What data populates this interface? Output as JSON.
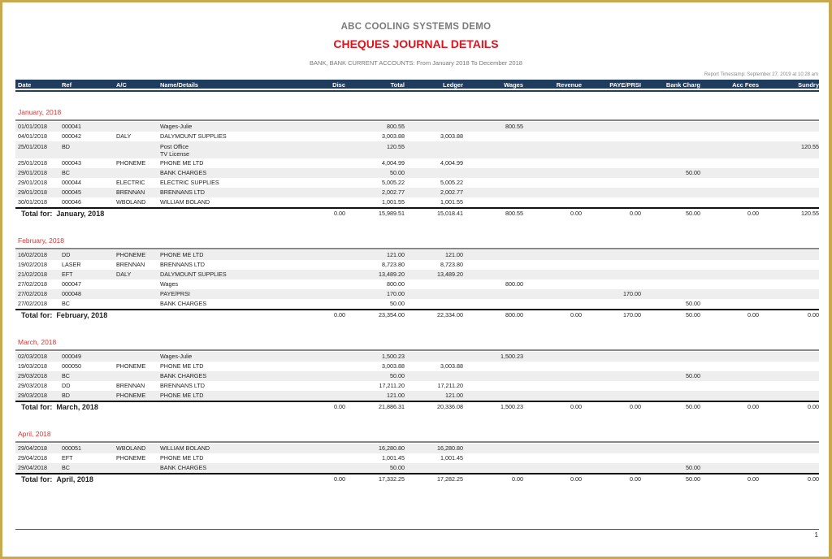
{
  "report": {
    "company": "ABC COOLING SYSTEMS DEMO",
    "title": "CHEQUES JOURNAL DETAILS",
    "subtitle": "BANK,  BANK CURRENT ACCOUNTS:  From January 2018 To December 2018",
    "timestamp": "Report Timestamp: September 27, 2019 at 10:28 am",
    "page_number": "1",
    "total_prefix": "Total for:"
  },
  "colors": {
    "header_bg": "#1f3b5e",
    "month_label": "#dd3333",
    "frame": "#c9a850"
  },
  "columns": [
    "Date",
    "Ref",
    "A/C",
    "Name/Details",
    "Disc",
    "Total",
    "Ledger",
    "Wages",
    "Revenue",
    "PAYE/PRSI",
    "Bank Charg",
    "Acc Fees",
    "Sundry"
  ],
  "groups": [
    {
      "month": "January, 2018",
      "rows": [
        [
          "01/01/2018",
          "000041",
          "",
          "Wages-Julie",
          "",
          "800.55",
          "",
          "800.55",
          "",
          "",
          "",
          "",
          ""
        ],
        [
          "04/01/2018",
          "000042",
          "DALY",
          "DALYMOUNT SUPPLIES",
          "",
          "3,003.88",
          "3,003.88",
          "",
          "",
          "",
          "",
          "",
          ""
        ],
        [
          "25/01/2018",
          "BD",
          "",
          "Post Office\nTV License",
          "",
          "120.55",
          "",
          "",
          "",
          "",
          "",
          "",
          "120.55"
        ],
        [
          "25/01/2018",
          "000043",
          "PHONEME",
          "PHONE ME LTD",
          "",
          "4,004.99",
          "4,004.99",
          "",
          "",
          "",
          "",
          "",
          ""
        ],
        [
          "29/01/2018",
          "BC",
          "",
          "BANK CHARGES",
          "",
          "50.00",
          "",
          "",
          "",
          "",
          "50.00",
          "",
          ""
        ],
        [
          "29/01/2018",
          "000044",
          "ELECTRIC",
          "ELECTRIC SUPPLIES",
          "",
          "5,005.22",
          "5,005.22",
          "",
          "",
          "",
          "",
          "",
          ""
        ],
        [
          "29/01/2018",
          "000045",
          "BRENNAN",
          "BRENNANS LTD",
          "",
          "2,002.77",
          "2,002.77",
          "",
          "",
          "",
          "",
          "",
          ""
        ],
        [
          "30/01/2018",
          "000046",
          "WBOLAND",
          "WILLIAM BOLAND",
          "",
          "1,001.55",
          "1,001.55",
          "",
          "",
          "",
          "",
          "",
          ""
        ]
      ],
      "totals": [
        "0.00",
        "15,989.51",
        "15,018.41",
        "800.55",
        "0.00",
        "0.00",
        "50.00",
        "0.00",
        "120.55"
      ]
    },
    {
      "month": "February, 2018",
      "rows": [
        [
          "16/02/2018",
          "DD",
          "PHONEME",
          "PHONE ME LTD",
          "",
          "121.00",
          "121.00",
          "",
          "",
          "",
          "",
          "",
          ""
        ],
        [
          "19/02/2018",
          "LASER",
          "BRENNAN",
          "BRENNANS LTD",
          "",
          "8,723.80",
          "8,723.80",
          "",
          "",
          "",
          "",
          "",
          ""
        ],
        [
          "21/02/2018",
          "EFT",
          "DALY",
          "DALYMOUNT SUPPLIES",
          "",
          "13,489.20",
          "13,489.20",
          "",
          "",
          "",
          "",
          "",
          ""
        ],
        [
          "27/02/2018",
          "000047",
          "",
          "Wages",
          "",
          "800.00",
          "",
          "800.00",
          "",
          "",
          "",
          "",
          ""
        ],
        [
          "27/02/2018",
          "000048",
          "",
          "PAYE/PRSI",
          "",
          "170.00",
          "",
          "",
          "",
          "170.00",
          "",
          "",
          ""
        ],
        [
          "27/02/2018",
          "BC",
          "",
          "BANK CHARGES",
          "",
          "50.00",
          "",
          "",
          "",
          "",
          "50.00",
          "",
          ""
        ]
      ],
      "totals": [
        "0.00",
        "23,354.00",
        "22,334.00",
        "800.00",
        "0.00",
        "170.00",
        "50.00",
        "0.00",
        "0.00"
      ]
    },
    {
      "month": "March, 2018",
      "rows": [
        [
          "02/03/2018",
          "000049",
          "",
          "Wages-Julie",
          "",
          "1,500.23",
          "",
          "1,500.23",
          "",
          "",
          "",
          "",
          ""
        ],
        [
          "19/03/2018",
          "000050",
          "PHONEME",
          "PHONE ME LTD",
          "",
          "3,003.88",
          "3,003.88",
          "",
          "",
          "",
          "",
          "",
          ""
        ],
        [
          "29/03/2018",
          "BC",
          "",
          "BANK CHARGES",
          "",
          "50.00",
          "",
          "",
          "",
          "",
          "50.00",
          "",
          ""
        ],
        [
          "29/03/2018",
          "DD",
          "BRENNAN",
          "BRENNANS LTD",
          "",
          "17,211.20",
          "17,211.20",
          "",
          "",
          "",
          "",
          "",
          ""
        ],
        [
          "29/03/2018",
          "BD",
          "PHONEME",
          "PHONE ME LTD",
          "",
          "121.00",
          "121.00",
          "",
          "",
          "",
          "",
          "",
          ""
        ]
      ],
      "totals": [
        "0.00",
        "21,886.31",
        "20,336.08",
        "1,500.23",
        "0.00",
        "0.00",
        "50.00",
        "0.00",
        "0.00"
      ]
    },
    {
      "month": "April, 2018",
      "rows": [
        [
          "29/04/2018",
          "000051",
          "WBOLAND",
          "WILLIAM BOLAND",
          "",
          "16,280.80",
          "16,280.80",
          "",
          "",
          "",
          "",
          "",
          ""
        ],
        [
          "29/04/2018",
          "EFT",
          "PHONEME",
          "PHONE ME LTD",
          "",
          "1,001.45",
          "1,001.45",
          "",
          "",
          "",
          "",
          "",
          ""
        ],
        [
          "29/04/2018",
          "BC",
          "",
          "BANK CHARGES",
          "",
          "50.00",
          "",
          "",
          "",
          "",
          "50.00",
          "",
          ""
        ]
      ],
      "totals": [
        "0.00",
        "17,332.25",
        "17,282.25",
        "0.00",
        "0.00",
        "0.00",
        "50.00",
        "0.00",
        "0.00"
      ]
    }
  ]
}
